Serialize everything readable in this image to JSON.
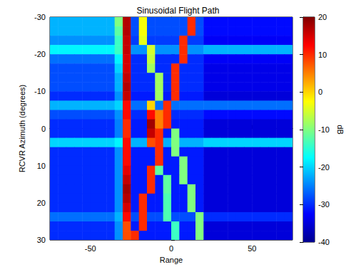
{
  "chart_data": {
    "type": "heatmap",
    "title": "Sinusoidal Flight Path",
    "x_label": "Range",
    "y_label": "RCVR Azimuth (degrees)",
    "xlim": [
      -75,
      75
    ],
    "xticks": [
      -50,
      0,
      50
    ],
    "ylim": [
      30,
      -30
    ],
    "yticks": [
      -30,
      -20,
      -10,
      0,
      10,
      20,
      30
    ],
    "x": [
      -72.5,
      -67.5,
      -62.5,
      -57.5,
      -52.5,
      -47.5,
      -42.5,
      -37.5,
      -32.5,
      -27.5,
      -22.5,
      -17.5,
      -12.5,
      -7.5,
      -2.5,
      2.5,
      7.5,
      12.5,
      17.5,
      22.5,
      27.5,
      32.5,
      37.5,
      42.5,
      47.5,
      52.5,
      57.5,
      62.5,
      67.5,
      72.5
    ],
    "y": [
      -28.75,
      -26.25,
      -23.75,
      -21.25,
      -18.75,
      -16.25,
      -13.75,
      -11.25,
      -8.75,
      -6.25,
      -3.75,
      -1.25,
      1.25,
      3.75,
      6.25,
      8.75,
      11.25,
      13.75,
      16.25,
      18.75,
      21.25,
      23.75,
      26.25,
      28.75
    ],
    "cells": [
      [
        -22,
        -22,
        -22,
        -22,
        -22,
        -22,
        -22,
        -22,
        -10,
        17,
        -28,
        -3,
        -28,
        -28,
        -28,
        -28,
        -28,
        10,
        -28,
        -32,
        -32,
        -32,
        -32,
        -32,
        -32,
        -32,
        -32,
        -32,
        -32,
        -32
      ],
      [
        -22,
        -22,
        -22,
        -22,
        -22,
        -22,
        -22,
        -22,
        -12,
        17,
        -28,
        -3,
        -28,
        -28,
        -28,
        -28,
        -28,
        10,
        -28,
        -32,
        -32,
        -32,
        -32,
        -32,
        -32,
        -32,
        -32,
        -32,
        -32,
        -32
      ],
      [
        -24,
        -24,
        -24,
        -24,
        -24,
        -24,
        -24,
        -24,
        -14,
        16,
        -29,
        -4,
        -29,
        -29,
        -29,
        -29,
        10,
        -29,
        -29,
        -33,
        -33,
        -33,
        -33,
        -33,
        -33,
        -33,
        -33,
        -33,
        -33,
        -33
      ],
      [
        -18,
        -18,
        -18,
        -18,
        -18,
        -18,
        -18,
        -18,
        -14,
        16,
        -24,
        -24,
        -5,
        -24,
        -24,
        -24,
        10,
        -24,
        -24,
        -22,
        -22,
        -22,
        -22,
        -22,
        -22,
        -22,
        -22,
        -22,
        -22,
        -22
      ],
      [
        -26,
        -26,
        -26,
        -26,
        -26,
        -26,
        -26,
        -26,
        -18,
        15,
        -30,
        -30,
        -6,
        -30,
        -30,
        -30,
        10,
        -30,
        -30,
        -33,
        -33,
        -33,
        -33,
        -33,
        -33,
        -33,
        -33,
        -33,
        -33,
        -33
      ],
      [
        -28,
        -28,
        -28,
        -28,
        -28,
        -28,
        -28,
        -28,
        -20,
        15,
        -30,
        -30,
        -8,
        -30,
        -30,
        10,
        -30,
        -30,
        -30,
        -34,
        -34,
        -34,
        -34,
        -34,
        -34,
        -34,
        -34,
        -34,
        -34,
        -34
      ],
      [
        -28,
        -28,
        -28,
        -28,
        -28,
        -28,
        -28,
        -28,
        -22,
        16,
        -30,
        -30,
        -30,
        -8,
        -30,
        10,
        -30,
        -30,
        -30,
        -34,
        -34,
        -34,
        -34,
        -34,
        -34,
        -34,
        -34,
        -34,
        -34,
        -34
      ],
      [
        -28,
        -28,
        -28,
        -28,
        -28,
        -28,
        -28,
        -28,
        -22,
        17,
        -30,
        -30,
        -30,
        -8,
        -30,
        10,
        -30,
        -30,
        -30,
        -34,
        -34,
        -34,
        -34,
        -34,
        -34,
        -34,
        -34,
        -34,
        -34,
        -34
      ],
      [
        -30,
        -30,
        -30,
        -30,
        -30,
        -30,
        -30,
        -30,
        -24,
        16,
        -31,
        -31,
        -31,
        -8,
        -31,
        10,
        -31,
        -31,
        -31,
        -35,
        -35,
        -35,
        -35,
        -35,
        -35,
        -35,
        -35,
        -35,
        -35,
        -35
      ],
      [
        -22,
        -22,
        -22,
        -22,
        -22,
        -22,
        -22,
        -22,
        -20,
        12,
        -26,
        -26,
        0,
        -26,
        10,
        -26,
        -26,
        -26,
        -26,
        -26,
        -26,
        -26,
        -26,
        -26,
        -26,
        -26,
        -26,
        -26,
        -26,
        -26
      ],
      [
        -28,
        -28,
        -28,
        -28,
        -28,
        -28,
        -28,
        -28,
        -24,
        12,
        -30,
        -30,
        12,
        5,
        10,
        -30,
        -30,
        -30,
        -30,
        -32,
        -32,
        -32,
        -32,
        -32,
        -32,
        -32,
        -32,
        -32,
        -32,
        -32
      ],
      [
        -30,
        -30,
        -30,
        -30,
        -30,
        -30,
        -30,
        -30,
        -25,
        10,
        -31,
        -31,
        18,
        5,
        10,
        -31,
        -31,
        -31,
        -31,
        -35,
        -35,
        -35,
        -35,
        -35,
        -35,
        -35,
        -35,
        -35,
        -35,
        -35
      ],
      [
        -30,
        -30,
        -30,
        -30,
        -30,
        -30,
        -30,
        -30,
        -25,
        10,
        -31,
        -31,
        16,
        10,
        -31,
        -10,
        -31,
        -31,
        -31,
        -35,
        -35,
        -35,
        -35,
        -35,
        -35,
        -35,
        -35,
        -35,
        -35,
        -35
      ],
      [
        -20,
        -20,
        -20,
        -20,
        -20,
        -20,
        -20,
        -20,
        -18,
        12,
        -22,
        -22,
        8,
        10,
        -22,
        -10,
        -22,
        -22,
        -22,
        -20,
        -20,
        -20,
        -20,
        -20,
        -20,
        -20,
        -20,
        -20,
        -20,
        -20
      ],
      [
        -30,
        -30,
        -30,
        -30,
        -30,
        -30,
        -30,
        -30,
        -24,
        12,
        -31,
        -31,
        -31,
        10,
        -31,
        -10,
        -31,
        -31,
        -31,
        -35,
        -35,
        -35,
        -35,
        -35,
        -35,
        -35,
        -35,
        -35,
        -35,
        -35
      ],
      [
        -30,
        -30,
        -30,
        -30,
        -30,
        -30,
        -30,
        -30,
        -24,
        12,
        -31,
        -31,
        -31,
        10,
        -31,
        -31,
        -10,
        -31,
        -31,
        -35,
        -35,
        -35,
        -35,
        -35,
        -35,
        -35,
        -35,
        -35,
        -35,
        -35
      ],
      [
        -30,
        -30,
        -30,
        -30,
        -30,
        -30,
        -30,
        -30,
        -24,
        14,
        -31,
        -31,
        10,
        -12,
        -31,
        -31,
        -10,
        -31,
        -31,
        -35,
        -35,
        -35,
        -35,
        -35,
        -35,
        -35,
        -35,
        -35,
        -35,
        -35
      ],
      [
        -30,
        -30,
        -30,
        -30,
        -30,
        -30,
        -30,
        -30,
        -24,
        16,
        -31,
        -31,
        10,
        -31,
        -12,
        -31,
        -10,
        -31,
        -31,
        -35,
        -35,
        -35,
        -35,
        -35,
        -35,
        -35,
        -35,
        -35,
        -35,
        -35
      ],
      [
        -30,
        -30,
        -30,
        -30,
        -30,
        -30,
        -30,
        -30,
        -24,
        18,
        -31,
        -31,
        10,
        -31,
        -12,
        -31,
        -31,
        -10,
        -31,
        -35,
        -35,
        -35,
        -35,
        -35,
        -35,
        -35,
        -35,
        -35,
        -35,
        -35
      ],
      [
        -30,
        -30,
        -30,
        -30,
        -30,
        -30,
        -30,
        -30,
        -24,
        17,
        -31,
        10,
        -31,
        -31,
        -13,
        -31,
        -31,
        -10,
        -31,
        -35,
        -35,
        -35,
        -35,
        -35,
        -35,
        -35,
        -35,
        -35,
        -35,
        -35
      ],
      [
        -30,
        -30,
        -30,
        -30,
        -30,
        -30,
        -30,
        -30,
        -24,
        15,
        -31,
        10,
        -31,
        -31,
        -13,
        -31,
        -31,
        -10,
        -31,
        -35,
        -35,
        -35,
        -35,
        -35,
        -35,
        -35,
        -35,
        -35,
        -35,
        -35
      ],
      [
        -26,
        -26,
        -26,
        -26,
        -26,
        -26,
        -26,
        -26,
        -22,
        12,
        -28,
        10,
        -28,
        -28,
        -13,
        -28,
        -28,
        -28,
        -10,
        -30,
        -30,
        -30,
        -30,
        -30,
        -30,
        -30,
        -30,
        -30,
        -30,
        -30
      ],
      [
        -30,
        -30,
        -30,
        -30,
        -30,
        -30,
        -30,
        -30,
        -24,
        8,
        -31,
        10,
        -31,
        -31,
        -31,
        -14,
        -31,
        -31,
        -10,
        -35,
        -35,
        -35,
        -35,
        -35,
        -35,
        -35,
        -35,
        -35,
        -35,
        -35
      ],
      [
        -30,
        -30,
        -30,
        -30,
        -30,
        -30,
        -30,
        -30,
        -24,
        8,
        10,
        -31,
        -31,
        -31,
        -31,
        -14,
        -31,
        -31,
        -10,
        -35,
        -35,
        -35,
        -35,
        -35,
        -35,
        -35,
        -35,
        -35,
        -35,
        -35
      ]
    ],
    "colorbar": {
      "label": "dB",
      "range": [
        -40,
        20
      ],
      "ticks": [
        -40,
        -30,
        -20,
        -10,
        0,
        10,
        20
      ]
    }
  }
}
